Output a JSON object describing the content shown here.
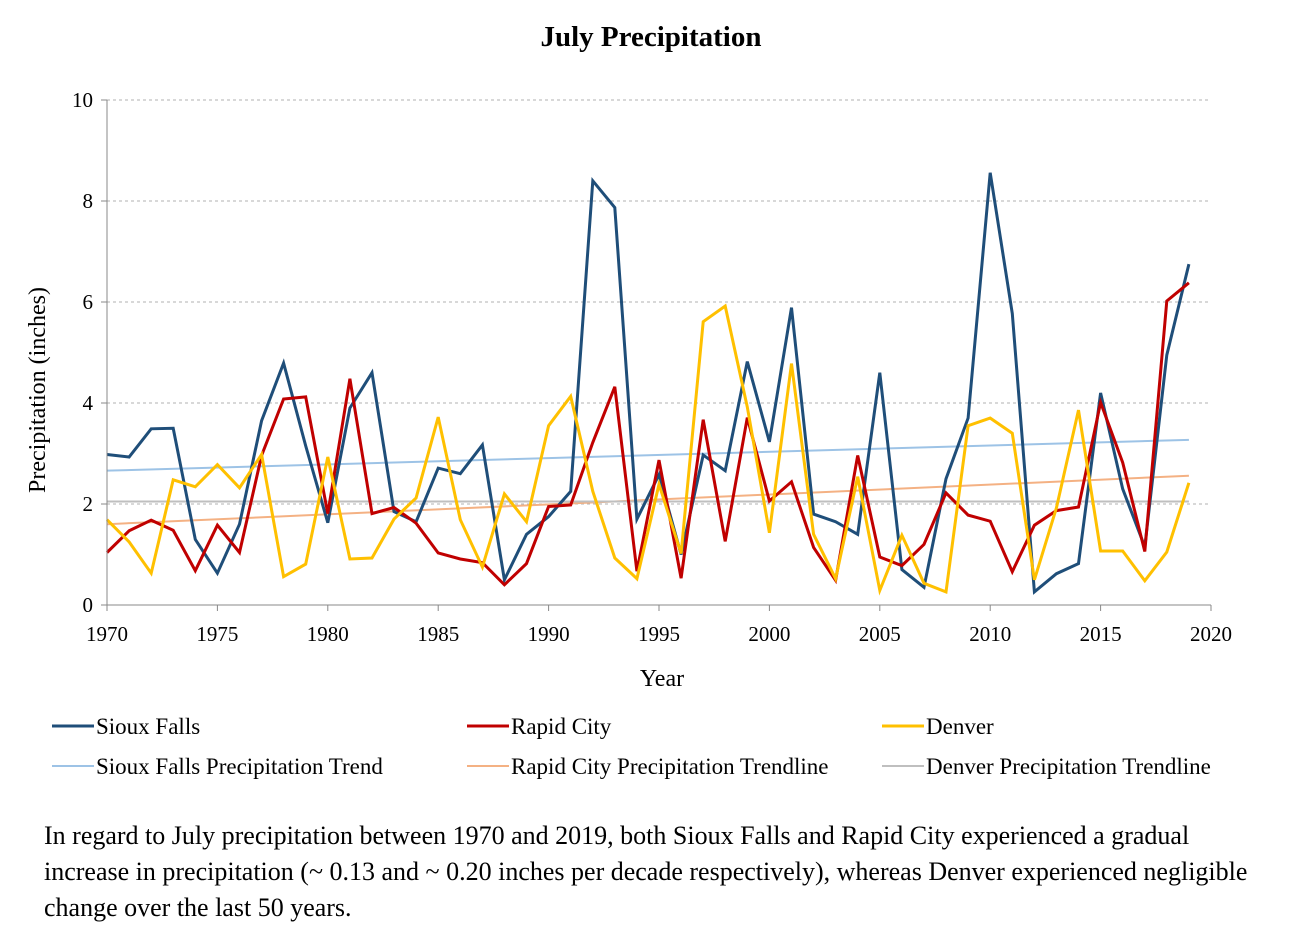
{
  "chart_data": {
    "type": "line",
    "title": "July Precipitation",
    "xlabel": "Year",
    "ylabel": "Precipitation (inches)",
    "xlim": [
      1970,
      2020
    ],
    "ylim": [
      0,
      10
    ],
    "x_ticks": [
      "1970",
      "1975",
      "1980",
      "1985",
      "1990",
      "1995",
      "2000",
      "2005",
      "2010",
      "2015",
      "2020"
    ],
    "y_ticks": [
      "0",
      "2",
      "4",
      "6",
      "8",
      "10"
    ],
    "grid": "horizontal dashed",
    "legend_position": "bottom",
    "x": [
      1970,
      1971,
      1972,
      1973,
      1974,
      1975,
      1976,
      1977,
      1978,
      1979,
      1980,
      1981,
      1982,
      1983,
      1984,
      1985,
      1986,
      1987,
      1988,
      1989,
      1990,
      1991,
      1992,
      1993,
      1994,
      1995,
      1996,
      1997,
      1998,
      1999,
      2000,
      2001,
      2002,
      2003,
      2004,
      2005,
      2006,
      2007,
      2008,
      2009,
      2010,
      2011,
      2012,
      2013,
      2014,
      2015,
      2016,
      2017,
      2018,
      2019
    ],
    "series": [
      {
        "name": "Sioux Falls",
        "color": "#1F4E79",
        "values": [
          2.98,
          2.93,
          3.49,
          3.5,
          1.3,
          0.63,
          1.6,
          3.65,
          4.79,
          3.15,
          1.63,
          3.9,
          4.6,
          1.85,
          1.65,
          2.71,
          2.6,
          3.17,
          0.5,
          1.4,
          1.75,
          2.25,
          8.4,
          7.87,
          1.7,
          2.58,
          1.0,
          2.97,
          2.66,
          4.82,
          3.23,
          5.89,
          1.8,
          1.65,
          1.4,
          4.6,
          0.7,
          0.35,
          2.5,
          3.7,
          8.56,
          5.77,
          0.26,
          0.62,
          0.82,
          4.2,
          2.3,
          1.15,
          4.95,
          6.75
        ]
      },
      {
        "name": "Rapid City",
        "color": "#C00000",
        "values": [
          1.04,
          1.47,
          1.68,
          1.48,
          0.68,
          1.58,
          1.04,
          2.96,
          4.08,
          4.12,
          1.81,
          4.48,
          1.81,
          1.93,
          1.62,
          1.03,
          0.91,
          0.84,
          0.4,
          0.82,
          1.95,
          1.98,
          3.22,
          4.32,
          0.67,
          2.87,
          0.53,
          3.67,
          1.26,
          3.71,
          2.06,
          2.44,
          1.14,
          0.49,
          2.96,
          0.95,
          0.78,
          1.2,
          2.22,
          1.78,
          1.66,
          0.66,
          1.58,
          1.87,
          1.94,
          4.01,
          2.82,
          1.06,
          6.02,
          6.38
        ]
      },
      {
        "name": "Denver",
        "color": "#FFC000",
        "values": [
          1.69,
          1.25,
          0.63,
          2.48,
          2.34,
          2.78,
          2.32,
          2.98,
          0.56,
          0.81,
          2.93,
          0.91,
          0.93,
          1.7,
          2.12,
          3.72,
          1.69,
          0.75,
          2.2,
          1.65,
          3.55,
          4.13,
          2.25,
          0.93,
          0.52,
          2.39,
          1.02,
          5.61,
          5.92,
          3.92,
          1.43,
          4.78,
          1.4,
          0.52,
          2.54,
          0.29,
          1.38,
          0.43,
          0.26,
          3.55,
          3.7,
          3.4,
          0.5,
          1.92,
          3.86,
          1.07,
          1.07,
          0.48,
          1.05,
          2.42
        ]
      },
      {
        "name": "Sioux Falls Precipitation Trend",
        "color": "#9DC3E6",
        "trend_x": [
          1970,
          2019
        ],
        "trend_values": [
          2.66,
          3.27
        ]
      },
      {
        "name": "Rapid City Precipitation Trendline",
        "color": "#F4B183",
        "trend_x": [
          1970,
          2019
        ],
        "trend_values": [
          1.6,
          2.56
        ]
      },
      {
        "name": "Denver Precipitation Trendline",
        "color": "#BFBFBF",
        "trend_x": [
          1970,
          2019
        ],
        "trend_values": [
          2.05,
          2.05
        ]
      }
    ]
  },
  "caption": "In regard to July precipitation between 1970 and 2019, both Sioux Falls and Rapid City experienced a gradual increase in precipitation (~ 0.13 and ~ 0.20 inches per decade respectively), whereas Denver experienced negligible change over the last 50 years."
}
